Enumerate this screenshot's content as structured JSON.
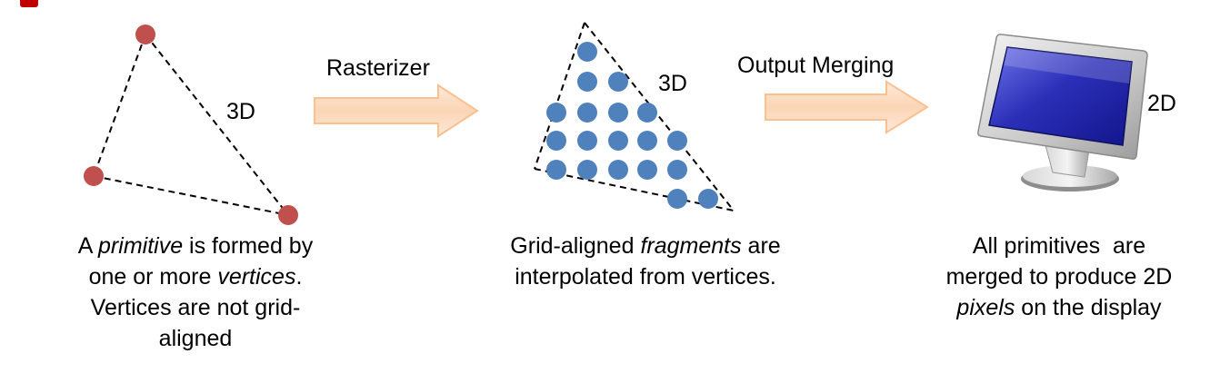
{
  "colors": {
    "vertex": "#c0504d",
    "fragment": "#4f81bd",
    "arrow_fill": "#fbd5b5",
    "arrow_stroke": "#fac090",
    "monitor_screen": "#2b2fb8"
  },
  "stages": {
    "primitive": {
      "dim_label": "3D",
      "caption": {
        "l1_a": "A ",
        "l1_em": "primitive",
        "l1_b": " is formed by",
        "l2_a": "one or more ",
        "l2_em": "vertices",
        "l2_b": ".",
        "l3": "Vertices are not grid-",
        "l4": "aligned"
      }
    },
    "rasterizer_arrow": {
      "label": "Rasterizer"
    },
    "fragments": {
      "dim_label": "3D",
      "caption": {
        "l1_a": "Grid-aligned ",
        "l1_em": "fragments",
        "l1_b": " are",
        "l2": "interpolated from vertices."
      }
    },
    "output_arrow": {
      "label": "Output Merging"
    },
    "display": {
      "dim_label": "2D",
      "icon": "monitor-icon",
      "caption": {
        "l1": "All primitives  are",
        "l2": "merged to produce 2D",
        "l3_em": "pixels",
        "l3_b": " on the display"
      }
    }
  }
}
